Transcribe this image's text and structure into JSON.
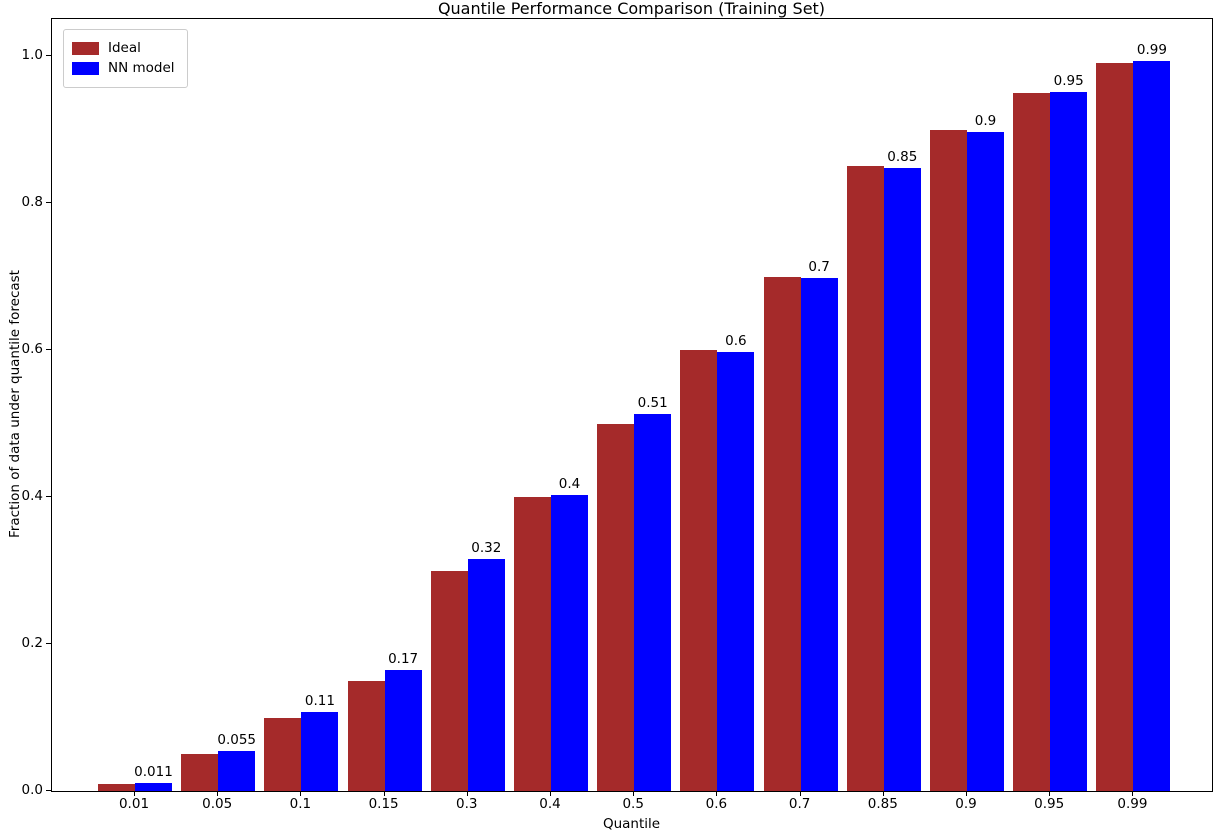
{
  "chart_data": {
    "type": "bar",
    "title": "Quantile Performance Comparison (Training Set)",
    "xlabel": "Quantile",
    "ylabel": "Fraction of data under quantile forecast",
    "categories": [
      "0.01",
      "0.05",
      "0.1",
      "0.15",
      "0.3",
      "0.4",
      "0.5",
      "0.6",
      "0.7",
      "0.85",
      "0.9",
      "0.95",
      "0.99"
    ],
    "series": [
      {
        "name": "Ideal",
        "color": "#A52A2A",
        "values": [
          0.01,
          0.05,
          0.1,
          0.15,
          0.3,
          0.4,
          0.5,
          0.6,
          0.7,
          0.85,
          0.9,
          0.95,
          0.99
        ]
      },
      {
        "name": "NN model",
        "color": "#0000FF",
        "values": [
          0.011,
          0.055,
          0.107,
          0.165,
          0.315,
          0.403,
          0.513,
          0.597,
          0.698,
          0.847,
          0.897,
          0.951,
          0.993
        ]
      }
    ],
    "bar_labels": [
      "0.011",
      "0.055",
      "0.11",
      "0.17",
      "0.32",
      "0.4",
      "0.51",
      "0.6",
      "0.7",
      "0.85",
      "0.9",
      "0.95",
      "0.99"
    ],
    "yticks": [
      "0.0",
      "0.2",
      "0.4",
      "0.6",
      "0.8",
      "1.0"
    ],
    "ylim": [
      0.0,
      1.05
    ],
    "legend_position": "upper left",
    "grid": false
  }
}
